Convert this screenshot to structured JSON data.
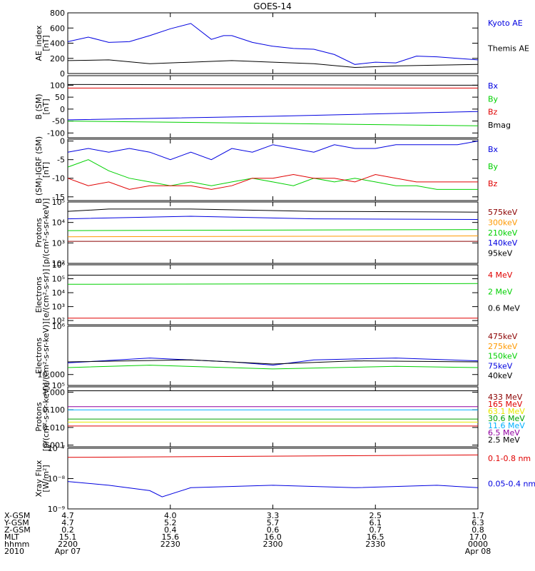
{
  "title": "GOES-14",
  "colors": {
    "black": "#000000",
    "blue": "#0000e0",
    "red": "#e00000",
    "green": "#00d000",
    "orange": "#ff9900",
    "cyan": "#00b0ff",
    "yellow": "#e8e800",
    "maroon": "#8b0000",
    "purple": "#9000a0",
    "darkgreen": "#00a000"
  },
  "chart_data": [
    {
      "type": "line",
      "id": "ae",
      "ylabel": "AE_index\n[nT]",
      "ylim": [
        0,
        800
      ],
      "scale": "linear",
      "yticks": [
        "0",
        "200",
        "400",
        "600",
        "800"
      ],
      "ytick_values": [
        0,
        200,
        400,
        600,
        800
      ],
      "series": [
        {
          "name": "Kyoto AE",
          "color": "blue",
          "x": [
            0,
            0.05,
            0.1,
            0.15,
            0.2,
            0.25,
            0.3,
            0.35,
            0.38,
            0.4,
            0.45,
            0.5,
            0.55,
            0.6,
            0.65,
            0.7,
            0.75,
            0.8,
            0.85,
            0.9,
            0.95,
            1.0
          ],
          "y": [
            420,
            480,
            410,
            420,
            500,
            590,
            660,
            450,
            500,
            500,
            410,
            360,
            330,
            320,
            250,
            120,
            150,
            140,
            230,
            220,
            200,
            180
          ]
        },
        {
          "name": "Themis AE",
          "color": "black",
          "x": [
            0,
            0.1,
            0.2,
            0.3,
            0.4,
            0.5,
            0.6,
            0.7,
            0.8,
            0.9,
            1.0
          ],
          "y": [
            170,
            180,
            130,
            150,
            170,
            150,
            130,
            80,
            100,
            110,
            120
          ]
        }
      ]
    },
    {
      "type": "line",
      "id": "bsm",
      "ylabel": "B (SM)\n[nT]",
      "ylim": [
        -120,
        140
      ],
      "scale": "linear",
      "yticks": [
        "-100",
        "-50",
        "0",
        "50",
        "100"
      ],
      "ytick_values": [
        -100,
        -50,
        0,
        50,
        100
      ],
      "series": [
        {
          "name": "Bx",
          "color": "blue",
          "x": [
            0,
            0.5,
            1.0
          ],
          "y": [
            -45,
            -30,
            -10
          ]
        },
        {
          "name": "By",
          "color": "green",
          "x": [
            0,
            0.5,
            1.0
          ],
          "y": [
            -50,
            -60,
            -70
          ]
        },
        {
          "name": "Bz",
          "color": "red",
          "x": [
            0,
            0.5,
            1.0
          ],
          "y": [
            88,
            88,
            88
          ]
        },
        {
          "name": "Bmag",
          "color": "black",
          "x": [
            0,
            0.5,
            1.0
          ],
          "y": [
            103,
            102,
            100
          ]
        }
      ]
    },
    {
      "type": "line",
      "id": "bigrf",
      "ylabel": "B (SM)-IGRF (SM)\n[nT]",
      "ylim": [
        -16,
        0.5
      ],
      "scale": "linear",
      "yticks": [
        "-15",
        "-10",
        "-5",
        "0"
      ],
      "ytick_values": [
        -15,
        -10,
        -5,
        0
      ],
      "series": [
        {
          "name": "Bx",
          "color": "blue",
          "x": [
            0,
            0.05,
            0.1,
            0.15,
            0.2,
            0.25,
            0.3,
            0.35,
            0.4,
            0.45,
            0.5,
            0.55,
            0.6,
            0.65,
            0.7,
            0.75,
            0.8,
            0.85,
            0.9,
            0.95,
            1.0
          ],
          "y": [
            -3,
            -2,
            -3,
            -2,
            -3,
            -5,
            -3,
            -5,
            -2,
            -3,
            -1,
            -2,
            -3,
            -1,
            -2,
            -2,
            -1,
            -1,
            -1,
            -1,
            0
          ]
        },
        {
          "name": "By",
          "color": "green",
          "x": [
            0,
            0.05,
            0.1,
            0.15,
            0.2,
            0.25,
            0.3,
            0.35,
            0.4,
            0.45,
            0.5,
            0.55,
            0.6,
            0.65,
            0.7,
            0.75,
            0.8,
            0.85,
            0.9,
            0.95,
            1.0
          ],
          "y": [
            -7,
            -5,
            -8,
            -10,
            -11,
            -12,
            -11,
            -12,
            -11,
            -10,
            -11,
            -12,
            -10,
            -11,
            -10,
            -11,
            -12,
            -12,
            -13,
            -13,
            -13
          ]
        },
        {
          "name": "Bz",
          "color": "red",
          "x": [
            0,
            0.05,
            0.1,
            0.15,
            0.2,
            0.25,
            0.3,
            0.35,
            0.4,
            0.45,
            0.5,
            0.55,
            0.6,
            0.65,
            0.7,
            0.75,
            0.8,
            0.85,
            0.9,
            0.95,
            1.0
          ],
          "y": [
            -10,
            -12,
            -11,
            -13,
            -12,
            -12,
            -12,
            -13,
            -12,
            -10,
            -10,
            -9,
            -10,
            -10,
            -11,
            -9,
            -10,
            -11,
            -11,
            -11,
            -11
          ]
        }
      ]
    },
    {
      "type": "line",
      "id": "protons1",
      "ylabel": "Protons\n[p/(cm²-s-sr-keV)]",
      "ylim": [
        100,
        100000
      ],
      "scale": "log",
      "yticks": [
        "10²",
        "10³",
        "10⁴",
        "10⁵"
      ],
      "ytick_values": [
        100,
        1000,
        10000,
        100000
      ],
      "series": [
        {
          "name": "575keV",
          "color": "maroon",
          "x": [
            0,
            1.0
          ],
          "y": [
            1200,
            1200
          ]
        },
        {
          "name": "300keV",
          "color": "orange",
          "x": [
            0,
            1.0
          ],
          "y": [
            2000,
            2200
          ]
        },
        {
          "name": "210keV",
          "color": "green",
          "x": [
            0,
            1.0
          ],
          "y": [
            4000,
            4500
          ]
        },
        {
          "name": "140keV",
          "color": "blue",
          "x": [
            0,
            0.3,
            0.6,
            1.0
          ],
          "y": [
            15000,
            20000,
            15000,
            14000
          ]
        },
        {
          "name": "95keV",
          "color": "black",
          "x": [
            0,
            0.1,
            0.3,
            0.6,
            1.0
          ],
          "y": [
            35000,
            45000,
            45000,
            35000,
            32000
          ]
        }
      ]
    },
    {
      "type": "line",
      "id": "electrons1",
      "ylabel": "Electrons\n[e/(cm²-s-sr)]",
      "ylim": [
        50,
        1000000
      ],
      "scale": "log",
      "yticks": [
        "10²",
        "10³",
        "10⁴",
        "10⁵",
        "10⁶"
      ],
      "ytick_values": [
        100,
        1000,
        10000,
        100000,
        1000000
      ],
      "series": [
        {
          "name": "4 MeV",
          "color": "red",
          "x": [
            0,
            1.0
          ],
          "y": [
            150,
            150
          ]
        },
        {
          "name": "2 MeV",
          "color": "green",
          "x": [
            0,
            1.0
          ],
          "y": [
            40000,
            45000
          ]
        },
        {
          "name": "0.6 MeV",
          "color": "black",
          "x": [
            0,
            1.0
          ],
          "y": [
            180000,
            180000
          ]
        }
      ]
    },
    {
      "type": "line",
      "id": "electrons2",
      "ylabel": "Electrons\n[e/(cm²-s-sr-keV)]",
      "ylim": [
        100000,
        1000000
      ],
      "scale": "log",
      "yticks": [
        "10⁵",
        "10⁶"
      ],
      "ytick_values": [
        100000,
        1000000
      ],
      "series": [
        {
          "name": "475keV",
          "color": "maroon",
          "x": [
            0,
            1.0
          ],
          "y": [
            null,
            null
          ]
        },
        {
          "name": "275keV",
          "color": "orange",
          "x": [
            0,
            1.0
          ],
          "y": [
            null,
            null
          ]
        },
        {
          "name": "150keV",
          "color": "green",
          "x": [
            0,
            0.2,
            0.5,
            0.8,
            1.0
          ],
          "y": [
            200000,
            220000,
            190000,
            210000,
            200000
          ]
        },
        {
          "name": "75keV",
          "color": "blue",
          "x": [
            0,
            0.2,
            0.4,
            0.5,
            0.6,
            0.8,
            1.0
          ],
          "y": [
            240000,
            290000,
            250000,
            220000,
            270000,
            290000,
            260000
          ]
        },
        {
          "name": "40keV",
          "color": "black",
          "x": [
            0,
            0.3,
            0.5,
            0.7,
            1.0
          ],
          "y": [
            250000,
            270000,
            230000,
            260000,
            250000
          ]
        }
      ]
    },
    {
      "type": "line",
      "id": "protons2",
      "ylabel": "Protons\n[p/(cm²-s-sr-keV)]",
      "ylim": [
        0.0008,
        2
      ],
      "scale": "log",
      "yticks": [
        "0.001",
        "0.010",
        "0.100",
        "1.000",
        "10.000"
      ],
      "ytick_values": [
        0.001,
        0.01,
        0.1,
        1,
        10
      ],
      "series": [
        {
          "name": "433 MeV",
          "color": "maroon",
          "x": [
            0,
            1.0
          ],
          "y": [
            null,
            null
          ]
        },
        {
          "name": "165 MeV",
          "color": "red",
          "x": [
            0,
            1.0
          ],
          "y": [
            0.012,
            0.012
          ]
        },
        {
          "name": "63.1 MeV",
          "color": "yellow",
          "x": [
            0,
            1.0
          ],
          "y": [
            0.02,
            0.02
          ]
        },
        {
          "name": "30.6 MeV",
          "color": "darkgreen",
          "x": [
            0,
            1.0
          ],
          "y": [
            0.03,
            0.03
          ]
        },
        {
          "name": "11.6 MeV",
          "color": "cyan",
          "x": [
            0,
            1.0
          ],
          "y": [
            0.1,
            0.1
          ]
        },
        {
          "name": "6.5 MeV",
          "color": "purple",
          "x": [
            0,
            1.0
          ],
          "y": [
            0.15,
            0.15
          ]
        },
        {
          "name": "2.5 MeV",
          "color": "black",
          "x": [
            0,
            1.0
          ],
          "y": [
            1.2,
            1.2
          ]
        }
      ]
    },
    {
      "type": "line",
      "id": "xray",
      "ylabel": "Xray Flux\n[W/m²]",
      "ylim": [
        1e-09,
        1e-07
      ],
      "scale": "log",
      "yticks": [
        "10⁻⁹",
        "10⁻⁸",
        "10⁻⁷"
      ],
      "ytick_values": [
        1e-09,
        1e-08,
        1e-07
      ],
      "series": [
        {
          "name": "0.1-0.8 nm",
          "color": "red",
          "x": [
            0,
            1.0
          ],
          "y": [
            5e-08,
            6e-08
          ]
        },
        {
          "name": "0.05-0.4 nm",
          "color": "blue",
          "x": [
            0,
            0.1,
            0.2,
            0.23,
            0.3,
            0.5,
            0.7,
            0.9,
            1.0
          ],
          "y": [
            8e-09,
            6e-09,
            4e-09,
            2.5e-09,
            5e-09,
            6e-09,
            5e-09,
            6e-09,
            5e-09
          ]
        }
      ]
    }
  ],
  "orbit": {
    "row_labels": [
      "X-GSM",
      "Y-GSM",
      "Z-GSM",
      "MLT",
      "hhmm",
      "2010"
    ],
    "columns": [
      {
        "values": [
          "4.7",
          "4.7",
          "0.2",
          "15.1",
          "2200",
          "Apr 07"
        ]
      },
      {
        "values": [
          "4.0",
          "5.2",
          "0.4",
          "15.6",
          "2230",
          ""
        ]
      },
      {
        "values": [
          "3.3",
          "5.7",
          "0.6",
          "16.0",
          "2300",
          ""
        ]
      },
      {
        "values": [
          "2.5",
          "6.1",
          "0.7",
          "16.5",
          "2330",
          ""
        ]
      },
      {
        "values": [
          "1.7",
          "6.3",
          "0.8",
          "17.0",
          "0000",
          "Apr 08"
        ]
      }
    ]
  }
}
